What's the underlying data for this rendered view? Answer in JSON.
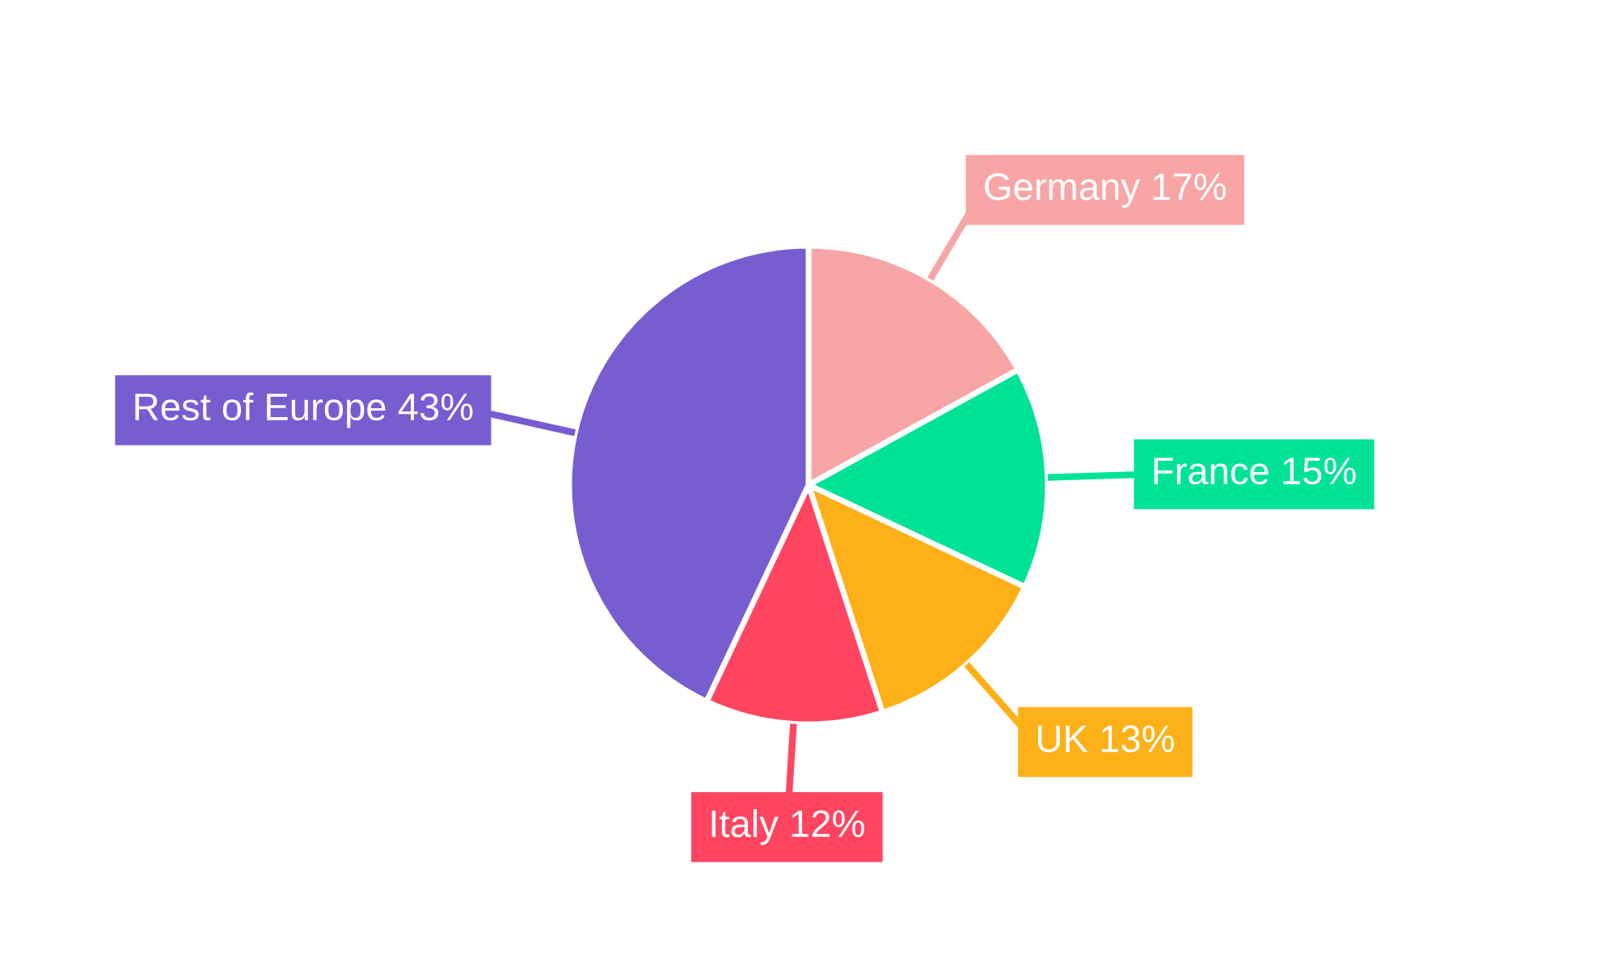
{
  "chart_data": {
    "type": "pie",
    "categories": [
      "Germany",
      "France",
      "UK",
      "Italy",
      "Rest of Europe"
    ],
    "values": [
      17,
      15,
      13,
      12,
      43
    ],
    "value_labels": [
      "17%",
      "15%",
      "13%",
      "12%",
      "43%"
    ],
    "colors": [
      "#f8a5a6",
      "#00e396",
      "#feb019",
      "#ff4560",
      "#775dd0"
    ],
    "legend": false
  }
}
